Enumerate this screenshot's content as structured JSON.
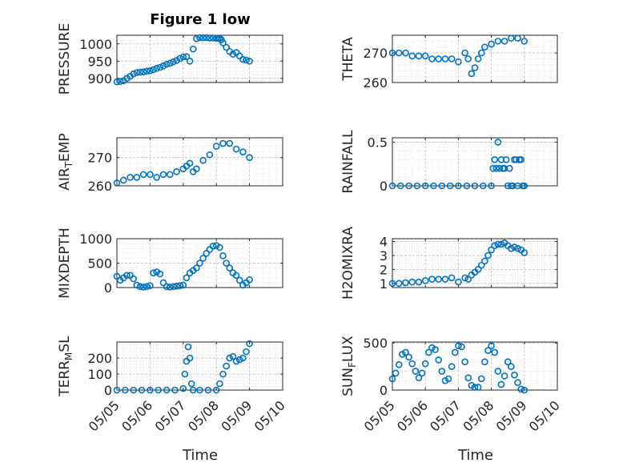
{
  "figure": {
    "title": "Figure 1 low",
    "xlabel": "Time"
  },
  "colors": {
    "marker": "#0072BD",
    "axis": "#262626",
    "grid": "#bfbfbf",
    "minorgrid": "#d9d9d9"
  },
  "xaxis": {
    "range": [
      0,
      5
    ],
    "tick_labels": [
      "05/05",
      "05/06",
      "05/07",
      "05/08",
      "05/09",
      "05/10"
    ]
  },
  "chart_data": [
    {
      "type": "scatter",
      "ylabel": "PRESSURE",
      "ylabel_sub": "",
      "ylabel_tail": "",
      "ylim": [
        888,
        1025
      ],
      "yticks": [
        900,
        950,
        1000
      ],
      "grid": "major+minor",
      "marker": "open-circle",
      "x": [
        0.0,
        0.1,
        0.2,
        0.3,
        0.4,
        0.5,
        0.6,
        0.7,
        0.8,
        0.9,
        1.0,
        1.1,
        1.2,
        1.3,
        1.4,
        1.5,
        1.6,
        1.7,
        1.8,
        1.9,
        2.0,
        2.1,
        2.2,
        2.3,
        2.4,
        2.5,
        2.6,
        2.7,
        2.8,
        2.9,
        3.0,
        3.05,
        3.1,
        3.15,
        3.2,
        3.3,
        3.4,
        3.5,
        3.6,
        3.7,
        3.8,
        3.9,
        4.0
      ],
      "y": [
        890,
        891,
        893,
        900,
        906,
        913,
        917,
        918,
        919,
        921,
        922,
        925,
        929,
        932,
        936,
        941,
        944,
        948,
        952,
        958,
        962,
        963,
        950,
        985,
        1015,
        1018,
        1018,
        1018,
        1017,
        1017,
        1016,
        1016,
        1015,
        1012,
        1003,
        990,
        978,
        970,
        975,
        965,
        955,
        953,
        950
      ]
    },
    {
      "type": "scatter",
      "ylabel": "THETA",
      "ylabel_sub": "",
      "ylabel_tail": "",
      "ylim": [
        260,
        276
      ],
      "yticks": [
        260,
        270
      ],
      "grid": "major+minor",
      "marker": "open-circle",
      "x": [
        0.0,
        0.2,
        0.4,
        0.6,
        0.8,
        1.0,
        1.2,
        1.4,
        1.6,
        1.8,
        2.0,
        2.2,
        2.3,
        2.4,
        2.5,
        2.6,
        2.7,
        2.8,
        3.0,
        3.2,
        3.4,
        3.6,
        3.8,
        4.0
      ],
      "y": [
        270,
        270,
        270,
        269,
        269,
        269,
        268,
        268,
        268,
        268,
        267,
        270,
        268,
        263,
        265,
        268,
        270,
        272,
        273,
        274,
        274,
        275,
        275,
        274
      ]
    },
    {
      "type": "scatter",
      "ylabel": "AIR",
      "ylabel_sub": "T",
      "ylabel_tail": "EMP",
      "ylim": [
        260,
        277
      ],
      "yticks": [
        260,
        270
      ],
      "grid": "major+minor",
      "marker": "open-circle",
      "x": [
        0.0,
        0.2,
        0.4,
        0.6,
        0.8,
        1.0,
        1.2,
        1.4,
        1.6,
        1.8,
        2.0,
        2.1,
        2.2,
        2.3,
        2.4,
        2.6,
        2.8,
        3.0,
        3.2,
        3.4,
        3.6,
        3.8,
        4.0
      ],
      "y": [
        261,
        262,
        263,
        263,
        264,
        264,
        263,
        264,
        264,
        265,
        266,
        267,
        268,
        265,
        266,
        269,
        271,
        274,
        275,
        275,
        273,
        272,
        270
      ]
    },
    {
      "type": "scatter",
      "ylabel": "RAINFALL",
      "ylabel_sub": "",
      "ylabel_tail": "",
      "ylim": [
        0,
        0.55
      ],
      "yticks": [
        0,
        0.5
      ],
      "tick_labels": [
        "0",
        "0.5"
      ],
      "grid": "major+minor",
      "marker": "open-circle",
      "x": [
        0.0,
        0.25,
        0.5,
        0.75,
        1.0,
        1.25,
        1.5,
        1.75,
        2.0,
        2.25,
        2.5,
        2.75,
        3.0,
        3.05,
        3.1,
        3.15,
        3.2,
        3.25,
        3.3,
        3.35,
        3.4,
        3.45,
        3.5,
        3.55,
        3.6,
        3.65,
        3.7,
        3.75,
        3.8,
        3.85,
        3.9,
        3.95,
        4.0
      ],
      "y": [
        0,
        0,
        0,
        0,
        0,
        0,
        0,
        0,
        0,
        0,
        0,
        0,
        0,
        0.2,
        0.3,
        0.2,
        0.5,
        0.2,
        0.3,
        0.2,
        0.2,
        0.3,
        0,
        0.2,
        0,
        0,
        0.3,
        0.3,
        0,
        0.3,
        0.3,
        0,
        0
      ]
    },
    {
      "type": "scatter",
      "ylabel": "MIXDEPTH",
      "ylabel_sub": "",
      "ylabel_tail": "",
      "ylim": [
        0,
        1000
      ],
      "yticks": [
        0,
        500,
        1000
      ],
      "grid": "major+minor",
      "marker": "open-circle",
      "x": [
        0.0,
        0.1,
        0.2,
        0.3,
        0.4,
        0.5,
        0.6,
        0.7,
        0.8,
        0.9,
        1.0,
        1.1,
        1.2,
        1.3,
        1.4,
        1.5,
        1.6,
        1.7,
        1.8,
        1.9,
        2.0,
        2.1,
        2.2,
        2.3,
        2.4,
        2.5,
        2.6,
        2.7,
        2.8,
        2.9,
        3.0,
        3.1,
        3.2,
        3.3,
        3.4,
        3.5,
        3.6,
        3.7,
        3.8,
        3.9,
        4.0
      ],
      "y": [
        230,
        150,
        200,
        250,
        250,
        180,
        50,
        20,
        10,
        20,
        40,
        300,
        320,
        280,
        100,
        20,
        10,
        20,
        30,
        40,
        50,
        200,
        300,
        350,
        400,
        500,
        600,
        700,
        780,
        850,
        860,
        820,
        650,
        500,
        400,
        300,
        250,
        150,
        50,
        100,
        160
      ]
    },
    {
      "type": "scatter",
      "ylabel": "H2OMIXRA",
      "ylabel_sub": "",
      "ylabel_tail": "",
      "ylim": [
        0.7,
        4.2
      ],
      "yticks": [
        1,
        2,
        3,
        4
      ],
      "grid": "major+minor",
      "marker": "open-circle",
      "x": [
        0.0,
        0.2,
        0.4,
        0.6,
        0.8,
        1.0,
        1.2,
        1.4,
        1.6,
        1.8,
        2.0,
        2.2,
        2.3,
        2.4,
        2.5,
        2.6,
        2.7,
        2.8,
        2.9,
        3.0,
        3.1,
        3.2,
        3.3,
        3.4,
        3.5,
        3.6,
        3.7,
        3.8,
        3.9,
        4.0
      ],
      "y": [
        1.0,
        1.0,
        1.05,
        1.1,
        1.1,
        1.2,
        1.3,
        1.3,
        1.3,
        1.4,
        1.1,
        1.4,
        1.3,
        1.6,
        1.8,
        2.0,
        2.3,
        2.6,
        3.0,
        3.4,
        3.7,
        3.8,
        3.8,
        3.9,
        3.7,
        3.5,
        3.6,
        3.5,
        3.4,
        3.2
      ]
    },
    {
      "type": "scatter",
      "ylabel": "TERR",
      "ylabel_sub": "M",
      "ylabel_tail": "SL",
      "ylim": [
        0,
        300
      ],
      "yticks": [
        0,
        100,
        200
      ],
      "grid": "major+minor",
      "marker": "open-circle",
      "x": [
        0.0,
        0.25,
        0.5,
        0.75,
        1.0,
        1.25,
        1.5,
        1.75,
        2.0,
        2.05,
        2.1,
        2.15,
        2.2,
        2.25,
        2.3,
        2.5,
        2.75,
        3.0,
        3.1,
        3.2,
        3.3,
        3.4,
        3.5,
        3.6,
        3.7,
        3.8,
        3.9,
        4.0
      ],
      "y": [
        0,
        0,
        0,
        0,
        0,
        0,
        0,
        0,
        10,
        100,
        180,
        270,
        200,
        40,
        0,
        0,
        0,
        0,
        40,
        100,
        150,
        200,
        210,
        180,
        190,
        200,
        240,
        290
      ]
    },
    {
      "type": "scatter",
      "ylabel": "SUN",
      "ylabel_sub": "F",
      "ylabel_tail": "LUX",
      "ylim": [
        0,
        510
      ],
      "yticks": [
        0,
        500
      ],
      "grid": "major+minor",
      "marker": "open-circle",
      "x": [
        0.0,
        0.1,
        0.2,
        0.3,
        0.4,
        0.5,
        0.6,
        0.7,
        0.8,
        0.9,
        1.0,
        1.1,
        1.2,
        1.3,
        1.4,
        1.5,
        1.6,
        1.7,
        1.8,
        1.9,
        2.0,
        2.1,
        2.2,
        2.3,
        2.4,
        2.5,
        2.6,
        2.7,
        2.8,
        2.9,
        3.0,
        3.1,
        3.2,
        3.3,
        3.4,
        3.5,
        3.6,
        3.7,
        3.8,
        3.9,
        4.0
      ],
      "y": [
        120,
        180,
        270,
        380,
        400,
        350,
        280,
        200,
        130,
        180,
        280,
        400,
        450,
        430,
        320,
        200,
        100,
        120,
        250,
        400,
        470,
        460,
        300,
        130,
        50,
        30,
        30,
        120,
        300,
        420,
        470,
        400,
        200,
        60,
        150,
        300,
        250,
        160,
        80,
        10,
        0
      ]
    }
  ]
}
